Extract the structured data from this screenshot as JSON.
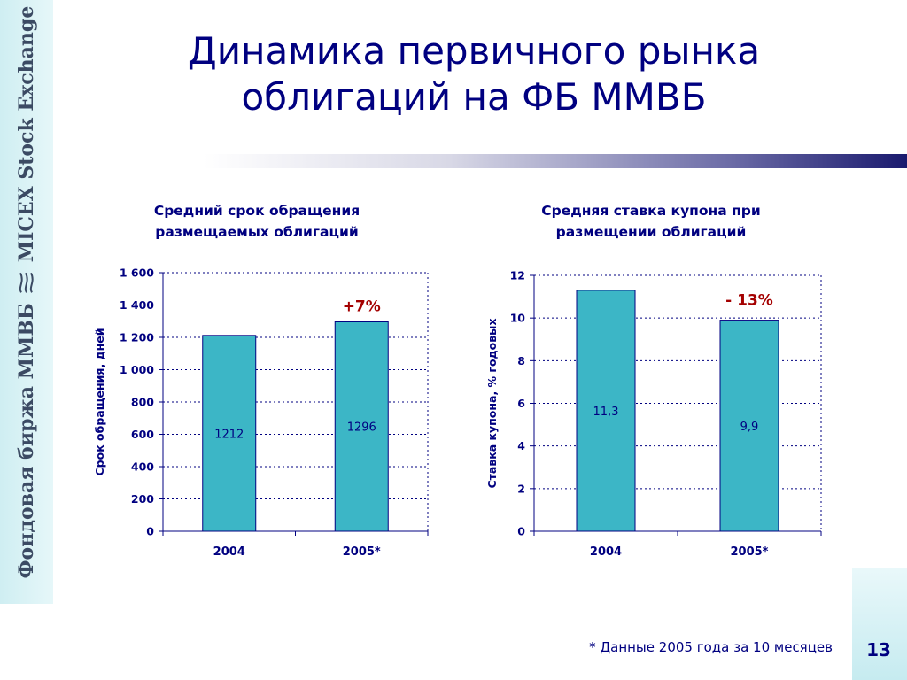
{
  "brand": {
    "text_ru": "Фондовая биржа ММВБ",
    "text_en": "MICEX Stock Exchange"
  },
  "title": {
    "line1": "Динамика первичного рынка",
    "line2": "облигаций на ФБ ММВБ"
  },
  "chart_data": [
    {
      "type": "bar",
      "title": "Средний срок обращения размещаемых облигаций",
      "title_lines": [
        "Средний срок обращения",
        "размещаемых облигаций"
      ],
      "ylabel": "Срок обращения, дней",
      "xlabel": "",
      "categories": [
        "2004",
        "2005*"
      ],
      "values": [
        1212,
        1296
      ],
      "data_labels": [
        "1212",
        "1296"
      ],
      "ylim": [
        0,
        1600
      ],
      "yticks": [
        0,
        200,
        400,
        600,
        800,
        1000,
        1200,
        1400,
        1600
      ],
      "ytick_labels": [
        "0",
        "200",
        "400",
        "600",
        "800",
        "1 000",
        "1 200",
        "1 400",
        "1 600"
      ],
      "grid": true,
      "annotation": "+7%",
      "bar_color": "#3cb6c6",
      "annotation_color": "#a40000"
    },
    {
      "type": "bar",
      "title": "Средняя ставка купона при размещении облигаций",
      "title_lines": [
        "Средняя ставка купона при",
        "размещении облигаций"
      ],
      "ylabel": "Ставка купона, % годовых",
      "xlabel": "",
      "categories": [
        "2004",
        "2005*"
      ],
      "values": [
        11.3,
        9.9
      ],
      "data_labels": [
        "11,3",
        "9,9"
      ],
      "ylim": [
        0,
        12
      ],
      "yticks": [
        0,
        2,
        4,
        6,
        8,
        10,
        12
      ],
      "ytick_labels": [
        "0",
        "2",
        "4",
        "6",
        "8",
        "10",
        "12"
      ],
      "grid": true,
      "annotation": "- 13%",
      "bar_color": "#3cb6c6",
      "annotation_color": "#a40000"
    }
  ],
  "footnote": "* Данные 2005 года за 10 месяцев",
  "page_number": "13",
  "colors": {
    "title": "#000080",
    "bar": "#3cb6c6",
    "annotation": "#a40000"
  }
}
